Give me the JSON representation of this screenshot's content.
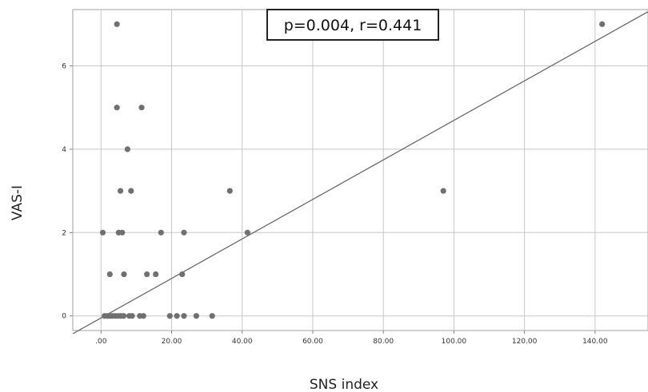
{
  "chart_data": {
    "type": "scatter",
    "xlabel": "SNS index",
    "ylabel": "VAS-I",
    "xlim": [
      -8,
      155
    ],
    "ylim": [
      -0.35,
      7.35
    ],
    "x_ticks": [
      {
        "value": 0,
        "label": ".00"
      },
      {
        "value": 20,
        "label": "20.00"
      },
      {
        "value": 40,
        "label": "40.00"
      },
      {
        "value": 60,
        "label": "60.00"
      },
      {
        "value": 80,
        "label": "80.00"
      },
      {
        "value": 100,
        "label": "100.00"
      },
      {
        "value": 120,
        "label": "120.00"
      },
      {
        "value": 140,
        "label": "140.00"
      }
    ],
    "y_ticks": [
      {
        "value": 0,
        "label": "0"
      },
      {
        "value": 2,
        "label": "2"
      },
      {
        "value": 4,
        "label": "4"
      },
      {
        "value": 6,
        "label": "6"
      }
    ],
    "grid": true,
    "annotation": "p=0.004, r=0.441",
    "fit_line": {
      "intercept": -0.048,
      "slope": 0.0474
    },
    "point_color": "#707070",
    "series": [
      {
        "points": [
          {
            "x": 4.5,
            "y": 7
          },
          {
            "x": 142,
            "y": 7
          },
          {
            "x": 4.5,
            "y": 5
          },
          {
            "x": 11.5,
            "y": 5
          },
          {
            "x": 7.5,
            "y": 4
          },
          {
            "x": 5.5,
            "y": 3
          },
          {
            "x": 8.5,
            "y": 3
          },
          {
            "x": 36.5,
            "y": 3
          },
          {
            "x": 97,
            "y": 3
          },
          {
            "x": 0.5,
            "y": 2
          },
          {
            "x": 5,
            "y": 2
          },
          {
            "x": 6,
            "y": 2
          },
          {
            "x": 17,
            "y": 2
          },
          {
            "x": 23.5,
            "y": 2
          },
          {
            "x": 41.5,
            "y": 2
          },
          {
            "x": 2.5,
            "y": 1
          },
          {
            "x": 6.5,
            "y": 1
          },
          {
            "x": 13,
            "y": 1
          },
          {
            "x": 15.5,
            "y": 1
          },
          {
            "x": 23,
            "y": 1
          },
          {
            "x": 1,
            "y": 0
          },
          {
            "x": 1.8,
            "y": 0
          },
          {
            "x": 2.5,
            "y": 0
          },
          {
            "x": 3.2,
            "y": 0
          },
          {
            "x": 4,
            "y": 0
          },
          {
            "x": 4.8,
            "y": 0
          },
          {
            "x": 5.6,
            "y": 0
          },
          {
            "x": 6.4,
            "y": 0
          },
          {
            "x": 8,
            "y": 0
          },
          {
            "x": 8.8,
            "y": 0
          },
          {
            "x": 11,
            "y": 0
          },
          {
            "x": 12,
            "y": 0
          },
          {
            "x": 19.5,
            "y": 0
          },
          {
            "x": 21.5,
            "y": 0
          },
          {
            "x": 23.5,
            "y": 0
          },
          {
            "x": 27,
            "y": 0
          },
          {
            "x": 31.5,
            "y": 0
          }
        ]
      }
    ]
  }
}
